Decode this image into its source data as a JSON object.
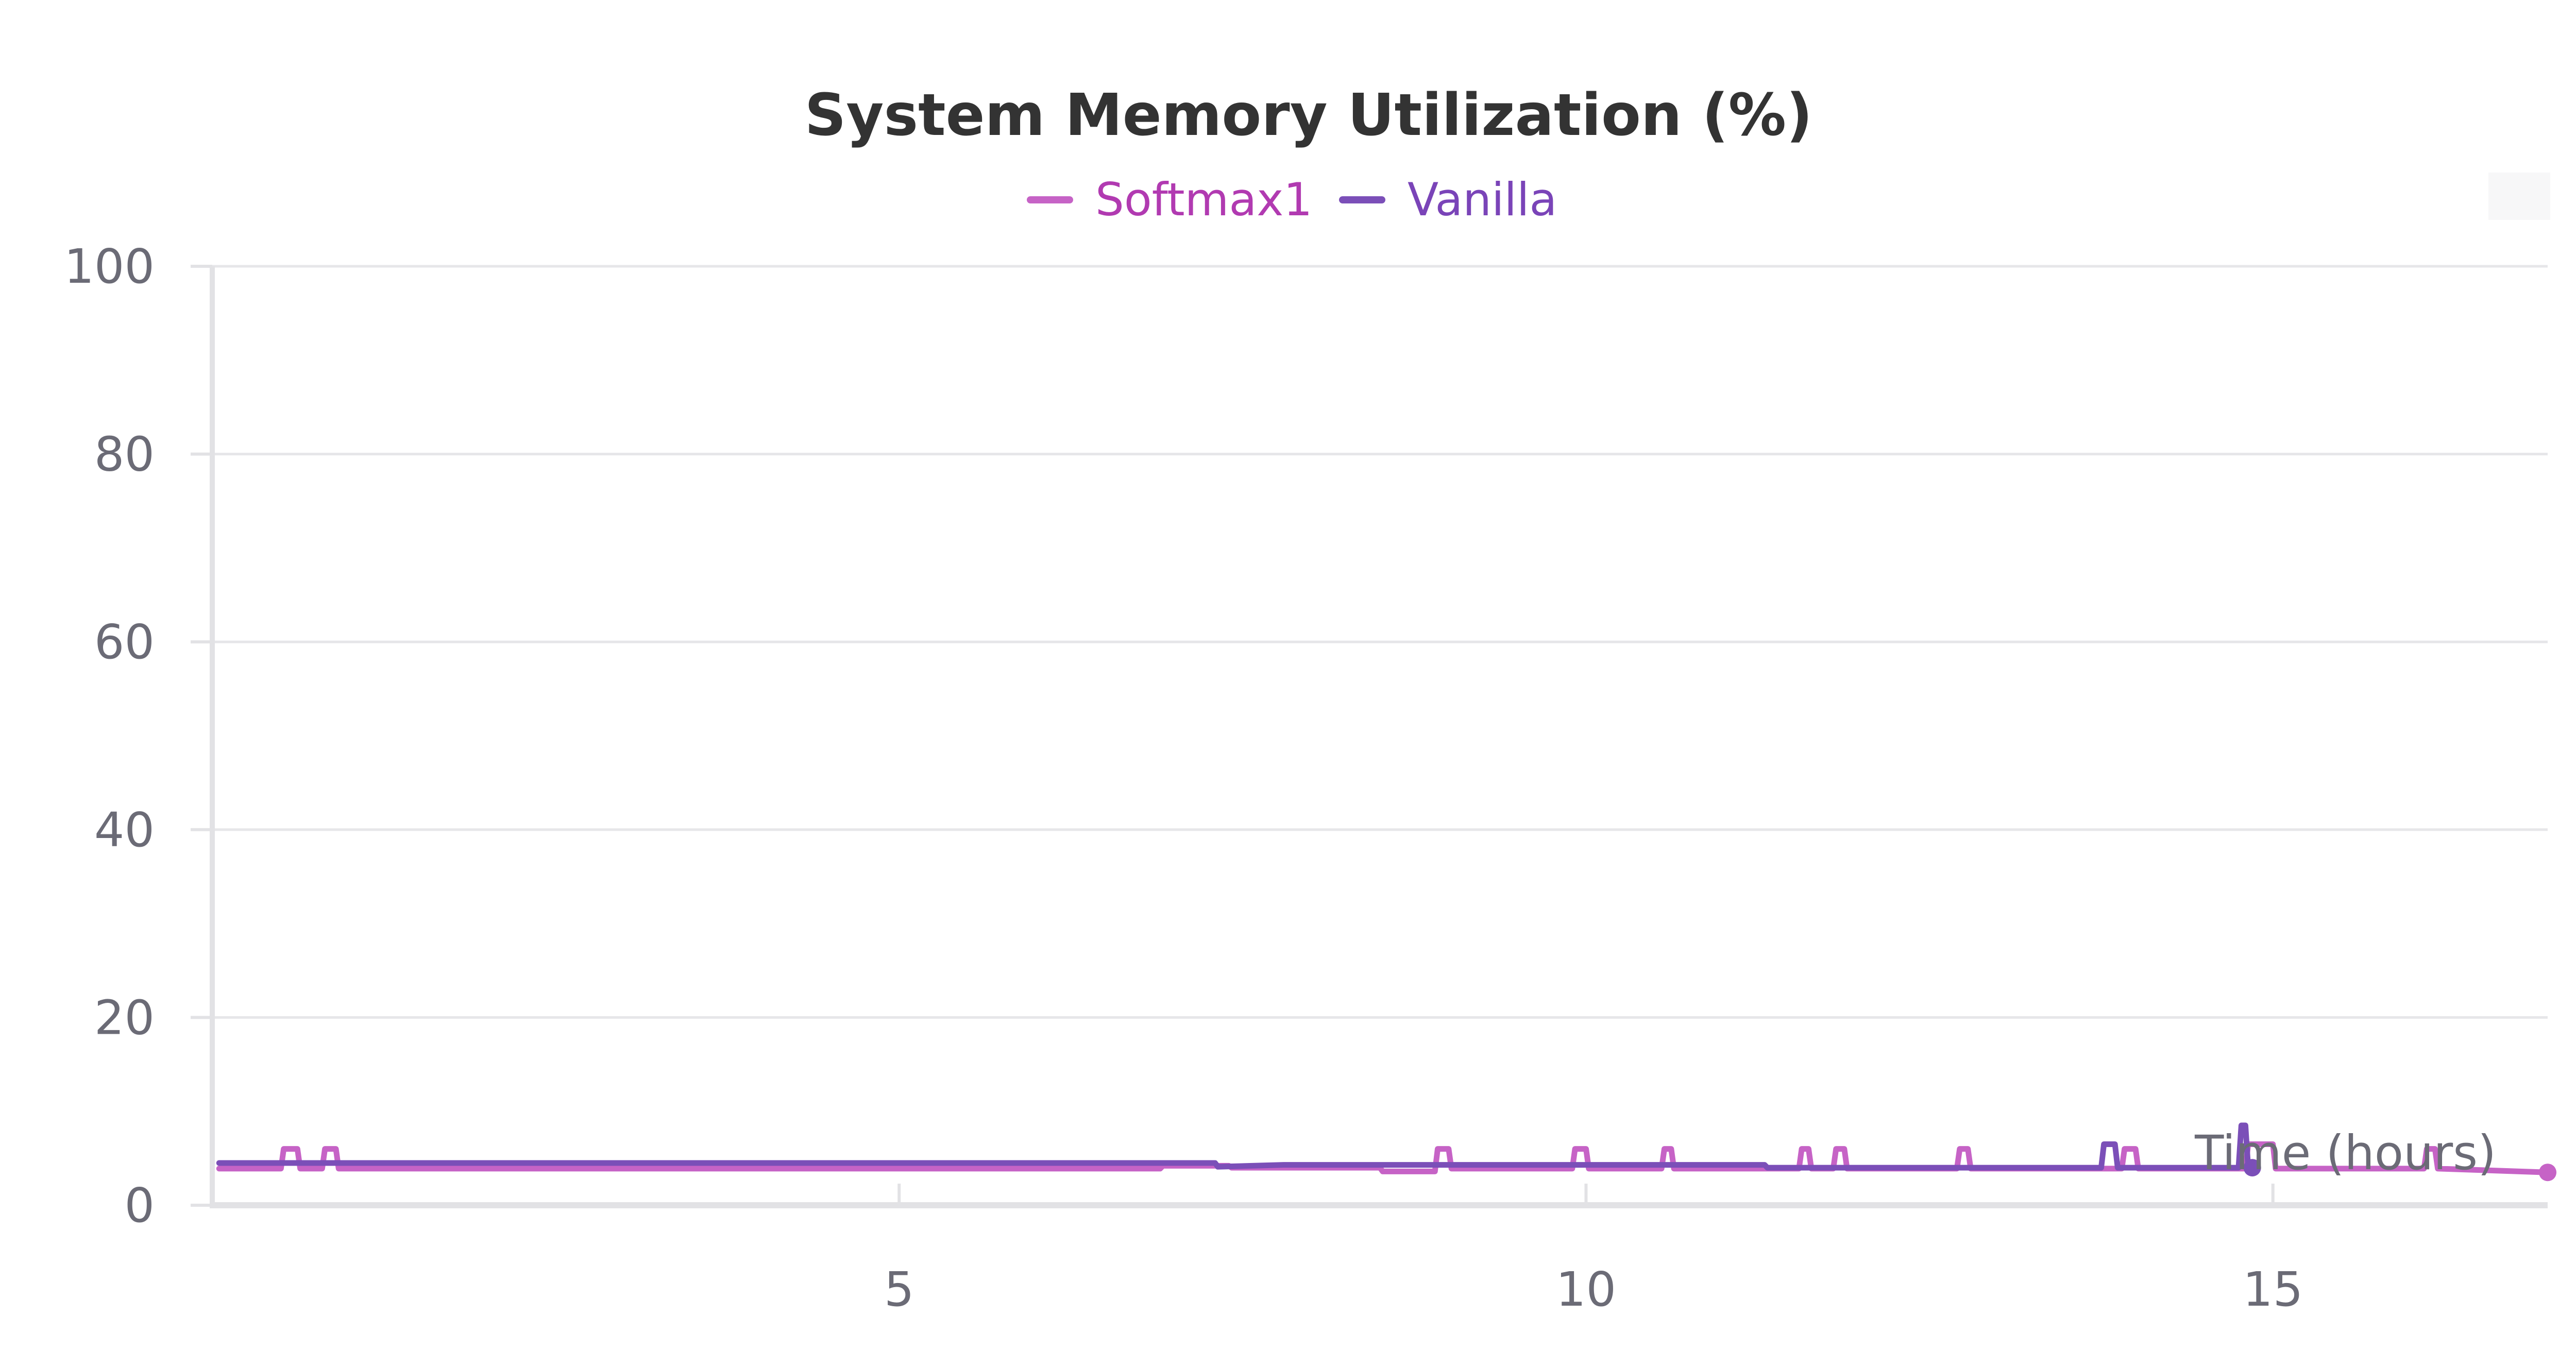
{
  "chart_data": {
    "type": "line",
    "title": "System Memory Utilization (%)",
    "xlabel": "Time (hours)",
    "ylabel": "",
    "xlim": [
      0,
      17
    ],
    "ylim": [
      0,
      100
    ],
    "x_ticks": [
      5,
      10,
      15
    ],
    "y_ticks": [
      0,
      20,
      40,
      60,
      80,
      100
    ],
    "grid": "horizontal",
    "legend_position": "top-center",
    "series": [
      {
        "name": "Softmax1",
        "color": "#c663c6",
        "points": [
          [
            0.05,
            3.9
          ],
          [
            0.5,
            3.9
          ],
          [
            0.52,
            6.0
          ],
          [
            0.62,
            6.0
          ],
          [
            0.64,
            3.9
          ],
          [
            0.8,
            3.9
          ],
          [
            0.82,
            6.0
          ],
          [
            0.9,
            6.0
          ],
          [
            0.92,
            3.9
          ],
          [
            6.9,
            3.9
          ],
          [
            6.92,
            4.2
          ],
          [
            7.4,
            4.2
          ],
          [
            7.42,
            4.0
          ],
          [
            8.5,
            4.0
          ],
          [
            8.52,
            3.6
          ],
          [
            8.9,
            3.6
          ],
          [
            8.92,
            6.0
          ],
          [
            9.0,
            6.0
          ],
          [
            9.02,
            3.9
          ],
          [
            9.9,
            3.9
          ],
          [
            9.92,
            6.0
          ],
          [
            10.0,
            6.0
          ],
          [
            10.02,
            3.9
          ],
          [
            10.55,
            3.9
          ],
          [
            10.57,
            6.0
          ],
          [
            10.62,
            6.0
          ],
          [
            10.64,
            3.9
          ],
          [
            11.55,
            3.9
          ],
          [
            11.57,
            6.0
          ],
          [
            11.62,
            6.0
          ],
          [
            11.64,
            3.9
          ],
          [
            11.8,
            3.9
          ],
          [
            11.82,
            6.0
          ],
          [
            11.88,
            6.0
          ],
          [
            11.9,
            3.9
          ],
          [
            12.7,
            3.9
          ],
          [
            12.72,
            6.0
          ],
          [
            12.78,
            6.0
          ],
          [
            12.8,
            3.9
          ],
          [
            13.9,
            3.9
          ],
          [
            13.92,
            6.0
          ],
          [
            14.0,
            6.0
          ],
          [
            14.02,
            3.9
          ],
          [
            14.8,
            3.9
          ],
          [
            14.82,
            6.5
          ],
          [
            15.0,
            6.5
          ],
          [
            15.02,
            3.9
          ],
          [
            16.1,
            3.9
          ],
          [
            16.12,
            6.0
          ],
          [
            16.18,
            6.0
          ],
          [
            16.2,
            3.9
          ],
          [
            17.0,
            3.5
          ]
        ]
      },
      {
        "name": "Vanilla",
        "color": "#7b4fb8",
        "points": [
          [
            0.05,
            4.5
          ],
          [
            7.3,
            4.5
          ],
          [
            7.32,
            4.1
          ],
          [
            7.8,
            4.3
          ],
          [
            11.3,
            4.3
          ],
          [
            11.32,
            4.0
          ],
          [
            13.75,
            4.0
          ],
          [
            13.77,
            6.5
          ],
          [
            13.85,
            6.5
          ],
          [
            13.87,
            4.0
          ],
          [
            14.75,
            4.0
          ],
          [
            14.77,
            8.5
          ],
          [
            14.8,
            8.5
          ],
          [
            14.82,
            4.0
          ],
          [
            14.85,
            4.0
          ]
        ]
      }
    ]
  }
}
